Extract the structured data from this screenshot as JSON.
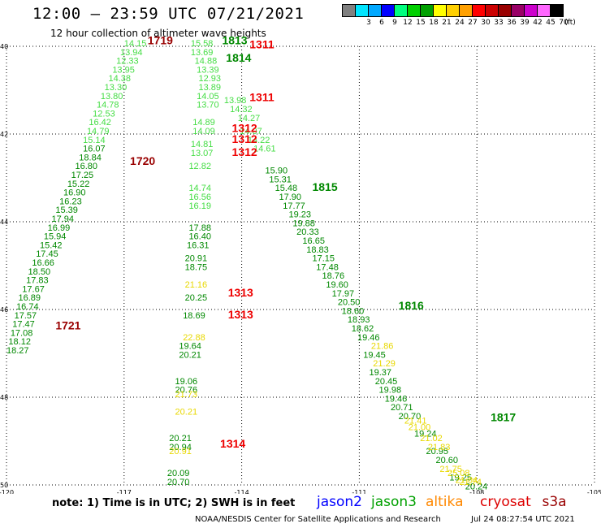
{
  "header": {
    "title": "12:00 – 23:59 UTC 07/21/2021",
    "subtitle": "12 hour collection of altimeter wave heights"
  },
  "legend": {
    "unit": "(ft)",
    "bins": [
      {
        "label": "",
        "color": "#808080"
      },
      {
        "label": "3",
        "color": "#00e5ff"
      },
      {
        "label": "6",
        "color": "#00a8ff"
      },
      {
        "label": "9",
        "color": "#0000ff"
      },
      {
        "label": "12",
        "color": "#00ff7f"
      },
      {
        "label": "15",
        "color": "#00d000"
      },
      {
        "label": "18",
        "color": "#00a000"
      },
      {
        "label": "21",
        "color": "#ffff00"
      },
      {
        "label": "24",
        "color": "#ffd000"
      },
      {
        "label": "27",
        "color": "#ffa000"
      },
      {
        "label": "30",
        "color": "#ff0000"
      },
      {
        "label": "33",
        "color": "#cc0000"
      },
      {
        "label": "36",
        "color": "#990000"
      },
      {
        "label": "39",
        "color": "#990066"
      },
      {
        "label": "42",
        "color": "#cc00cc"
      },
      {
        "label": "45",
        "color": "#ff66ff"
      },
      {
        "label": "70",
        "color": "#000000"
      }
    ]
  },
  "axes": {
    "x_ticks": [
      "-120",
      "-117",
      "-114",
      "-111",
      "-108",
      "-105"
    ],
    "y_ticks": [
      "40",
      "42",
      "44",
      "46",
      "48",
      "50"
    ],
    "lon_range": [
      -120,
      -105
    ],
    "lat_range": [
      40,
      50
    ]
  },
  "colors": {
    "light_green": "#44dd44",
    "green": "#008800",
    "yellow": "#e8d800",
    "red": "#ee0000",
    "dark_red": "#990000"
  },
  "tracks": [
    {
      "name": "track-a",
      "color": "light_green",
      "font": 11,
      "points": [
        [
          "14.15",
          -117.0,
          40.0
        ],
        [
          "13.94",
          -117.1,
          40.2
        ],
        [
          "12.33",
          -117.2,
          40.4
        ],
        [
          "13.95",
          -117.3,
          40.6
        ],
        [
          "14.38",
          -117.4,
          40.8
        ],
        [
          "13.30",
          -117.5,
          41.0
        ],
        [
          "13.80",
          -117.6,
          41.2
        ],
        [
          "14.78",
          -117.7,
          41.4
        ],
        [
          "12.53",
          -117.8,
          41.6
        ],
        [
          "16.42",
          -117.9,
          41.8
        ],
        [
          "14.79",
          -117.95,
          42.0
        ],
        [
          "15.14",
          -118.05,
          42.2
        ]
      ]
    },
    {
      "name": "track-a2",
      "color": "green",
      "font": 11,
      "points": [
        [
          "16.07",
          -118.05,
          42.4
        ],
        [
          "18.84",
          -118.15,
          42.6
        ],
        [
          "16.80",
          -118.25,
          42.8
        ],
        [
          "17.25",
          -118.35,
          43.0
        ],
        [
          "15.22",
          -118.45,
          43.2
        ],
        [
          "16.90",
          -118.55,
          43.4
        ],
        [
          "16.23",
          -118.65,
          43.6
        ],
        [
          "15.39",
          -118.75,
          43.8
        ],
        [
          "17.94",
          -118.85,
          44.0
        ],
        [
          "16.99",
          -118.95,
          44.2
        ],
        [
          "15.94",
          -119.05,
          44.4
        ],
        [
          "15.42",
          -119.15,
          44.6
        ],
        [
          "17.45",
          -119.25,
          44.8
        ],
        [
          "16.66",
          -119.35,
          45.0
        ],
        [
          "18.50",
          -119.45,
          45.2
        ],
        [
          "17.83",
          -119.5,
          45.4
        ],
        [
          "17.67",
          -119.6,
          45.6
        ],
        [
          "16.89",
          -119.7,
          45.8
        ],
        [
          "16.74",
          -119.75,
          46.0
        ],
        [
          "17.57",
          -119.8,
          46.2
        ],
        [
          "17.47",
          -119.85,
          46.4
        ],
        [
          "17.08",
          -119.9,
          46.6
        ],
        [
          "18.12",
          -119.95,
          46.8
        ],
        [
          "18.27",
          -120.0,
          47.0
        ]
      ]
    },
    {
      "name": "track-b",
      "color": "light_green",
      "font": 11,
      "points": [
        [
          "15.58",
          -115.3,
          40.0
        ],
        [
          "13.69",
          -115.3,
          40.2
        ],
        [
          "14.88",
          -115.2,
          40.4
        ],
        [
          "13.39",
          -115.15,
          40.6
        ],
        [
          "12.93",
          -115.1,
          40.8
        ],
        [
          "13.89",
          -115.1,
          41.0
        ],
        [
          "14.05",
          -115.15,
          41.2
        ],
        [
          "13.70",
          -115.15,
          41.4
        ],
        [
          "14.89",
          -115.25,
          41.8
        ],
        [
          "14.09",
          -115.25,
          42.0
        ],
        [
          "14.81",
          -115.3,
          42.3
        ],
        [
          "13.07",
          -115.3,
          42.5
        ],
        [
          "12.82",
          -115.35,
          42.8
        ],
        [
          "14.74",
          -115.35,
          43.3
        ],
        [
          "16.56",
          -115.35,
          43.5
        ],
        [
          "16.19",
          -115.35,
          43.7
        ]
      ]
    },
    {
      "name": "track-b2",
      "color": "green",
      "font": 11,
      "points": [
        [
          "17.88",
          -115.35,
          44.2
        ],
        [
          "16.40",
          -115.35,
          44.4
        ],
        [
          "16.31",
          -115.4,
          44.6
        ],
        [
          "20.91",
          -115.45,
          44.9
        ],
        [
          "18.75",
          -115.45,
          45.1
        ],
        [
          "20.25",
          -115.45,
          45.8
        ],
        [
          "18.69",
          -115.5,
          46.2
        ],
        [
          "19.64",
          -115.6,
          46.9
        ],
        [
          "20.21",
          -115.6,
          47.1
        ],
        [
          "19.06",
          -115.7,
          47.7
        ],
        [
          "20.76",
          -115.7,
          47.9
        ],
        [
          "20.21",
          -115.85,
          49.0
        ],
        [
          "20.94",
          -115.85,
          49.2
        ],
        [
          "20.09",
          -115.9,
          49.8
        ],
        [
          "20.70",
          -115.9,
          50.0
        ]
      ]
    },
    {
      "name": "track-b3",
      "color": "yellow",
      "font": 11,
      "points": [
        [
          "21.16",
          -115.45,
          45.5
        ],
        [
          "22.88",
          -115.5,
          46.7
        ],
        [
          "21.73",
          -115.7,
          48.0
        ],
        [
          "20.21",
          -115.7,
          48.4
        ],
        [
          "20.91",
          -115.85,
          49.3
        ]
      ]
    },
    {
      "name": "track-c",
      "color": "green",
      "font": 11,
      "points": [
        [
          "15.90",
          -113.4,
          42.9
        ],
        [
          "15.31",
          -113.3,
          43.1
        ],
        [
          "15.48",
          -113.15,
          43.3
        ],
        [
          "17.90",
          -113.05,
          43.5
        ],
        [
          "17.77",
          -112.95,
          43.7
        ],
        [
          "19.23",
          -112.8,
          43.9
        ],
        [
          "19.88",
          -112.7,
          44.1
        ],
        [
          "20.33",
          -112.6,
          44.3
        ],
        [
          "16.65",
          -112.45,
          44.5
        ],
        [
          "18.83",
          -112.35,
          44.7
        ],
        [
          "17.15",
          -112.2,
          44.9
        ],
        [
          "17.48",
          -112.1,
          45.1
        ],
        [
          "18.76",
          -111.95,
          45.3
        ],
        [
          "19.60",
          -111.85,
          45.5
        ],
        [
          "17.97",
          -111.7,
          45.7
        ],
        [
          "20.50",
          -111.55,
          45.9
        ],
        [
          "18.60",
          -111.45,
          46.1
        ],
        [
          "18.93",
          -111.3,
          46.3
        ],
        [
          "18.62",
          -111.2,
          46.5
        ],
        [
          "19.46",
          -111.05,
          46.7
        ],
        [
          "19.45",
          -110.9,
          47.1
        ],
        [
          "19.37",
          -110.75,
          47.5
        ],
        [
          "20.45",
          -110.6,
          47.7
        ],
        [
          "19.98",
          -110.5,
          47.9
        ],
        [
          "19.46",
          -110.35,
          48.1
        ],
        [
          "20.71",
          -110.2,
          48.3
        ],
        [
          "20.70",
          -110.0,
          48.5
        ],
        [
          "19.24",
          -109.6,
          48.9
        ],
        [
          "20.95",
          -109.3,
          49.3
        ],
        [
          "20.60",
          -109.05,
          49.5
        ],
        [
          "19.25",
          -108.7,
          49.9
        ],
        [
          "20.24",
          -108.3,
          50.1
        ]
      ]
    },
    {
      "name": "track-c2",
      "color": "light_green",
      "font": 11,
      "points": [
        [
          "13.98",
          -114.45,
          41.3
        ],
        [
          "14.32",
          -114.3,
          41.5
        ],
        [
          "14.27",
          -114.1,
          41.7
        ],
        [
          "14.07",
          -114.05,
          42.0
        ],
        [
          "14.22",
          -113.85,
          42.2
        ],
        [
          "14.61",
          -113.7,
          42.4
        ]
      ]
    },
    {
      "name": "track-c3",
      "color": "yellow",
      "font": 11,
      "points": [
        [
          "21.86",
          -110.7,
          46.9
        ],
        [
          "21.29",
          -110.65,
          47.3
        ],
        [
          "21.41",
          -109.85,
          48.6
        ],
        [
          "21.00",
          -109.75,
          48.75
        ],
        [
          "21.02",
          -109.45,
          49.0
        ],
        [
          "21.83",
          -109.25,
          49.2
        ],
        [
          "21.75",
          -108.95,
          49.7
        ],
        [
          "25.08",
          -108.75,
          49.8
        ],
        [
          "21.84",
          -108.55,
          49.95
        ],
        [
          "21.74",
          -108.45,
          50.0
        ]
      ]
    }
  ],
  "markers": [
    {
      "text": "1719",
      "lon": -116.4,
      "lat": 39.95,
      "color": "dark_red"
    },
    {
      "text": "1813",
      "lon": -114.5,
      "lat": 39.95,
      "color": "green"
    },
    {
      "text": "1311",
      "lon": -113.8,
      "lat": 40.05,
      "color": "red"
    },
    {
      "text": "1814",
      "lon": -114.4,
      "lat": 40.35,
      "color": "green"
    },
    {
      "text": "1311",
      "lon": -113.8,
      "lat": 41.25,
      "color": "red"
    },
    {
      "text": "1312",
      "lon": -114.25,
      "lat": 41.95,
      "color": "red"
    },
    {
      "text": "1312",
      "lon": -114.25,
      "lat": 42.2,
      "color": "red"
    },
    {
      "text": "1312",
      "lon": -114.25,
      "lat": 42.5,
      "color": "red"
    },
    {
      "text": "1720",
      "lon": -116.85,
      "lat": 42.7,
      "color": "dark_red"
    },
    {
      "text": "1815",
      "lon": -112.2,
      "lat": 43.3,
      "color": "green"
    },
    {
      "text": "1313",
      "lon": -114.35,
      "lat": 45.7,
      "color": "red"
    },
    {
      "text": "1313",
      "lon": -114.35,
      "lat": 46.2,
      "color": "red"
    },
    {
      "text": "1721",
      "lon": -118.75,
      "lat": 46.45,
      "color": "dark_red"
    },
    {
      "text": "1816",
      "lon": -110.0,
      "lat": 46.0,
      "color": "green"
    },
    {
      "text": "1817",
      "lon": -107.65,
      "lat": 48.55,
      "color": "green"
    },
    {
      "text": "1314",
      "lon": -114.55,
      "lat": 49.15,
      "color": "red"
    }
  ],
  "footer": {
    "note": "note: 1) Time is in UTC; 2) SWH is in feet",
    "satellites": [
      {
        "name": "jason2",
        "color": "#0000ff"
      },
      {
        "name": "jason3",
        "color": "#00a000"
      },
      {
        "name": "altika",
        "color": "#ff8800"
      },
      {
        "name": "cryosat",
        "color": "#dd0000"
      },
      {
        "name": "s3a",
        "color": "#990000"
      }
    ],
    "credit": "NOAA/NESDIS Center for Satellite Applications and Research",
    "generated": "Jul 24 08:27:54 UTC 2021"
  }
}
